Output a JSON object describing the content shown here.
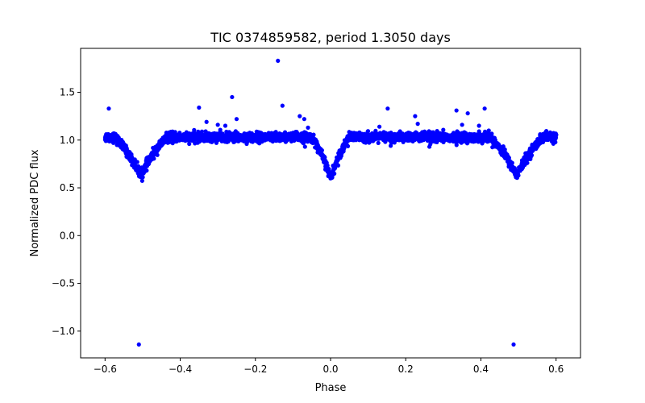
{
  "chart_data": {
    "type": "scatter",
    "title": "TIC 0374859582, period 1.3050 days",
    "xlabel": "Phase",
    "ylabel": "Normalized PDC flux",
    "xlim": [
      -0.665,
      0.665
    ],
    "ylim": [
      -1.28,
      1.96
    ],
    "xticks": [
      -0.6,
      -0.4,
      -0.2,
      0.0,
      0.2,
      0.4,
      0.6
    ],
    "xtick_labels": [
      "−0.6",
      "−0.4",
      "−0.2",
      "0.0",
      "0.2",
      "0.4",
      "0.6"
    ],
    "yticks": [
      -1.0,
      -0.5,
      0.0,
      0.5,
      1.0,
      1.5
    ],
    "ytick_labels": [
      "−1.0",
      "−0.5",
      "0.0",
      "0.5",
      "1.0",
      "1.5"
    ],
    "grid": false,
    "series": [
      {
        "color": "#0000ff",
        "model": {
          "phase_range": [
            -0.6,
            0.6
          ],
          "baseline": 1.03,
          "eclipses": [
            {
              "center": -0.505,
              "depth": 0.4,
              "half_width": 0.07
            },
            {
              "center": 0.0,
              "depth": 0.42,
              "half_width": 0.05
            },
            {
              "center": 0.495,
              "depth": 0.4,
              "half_width": 0.07
            }
          ],
          "scatter": 0.035
        },
        "outliers": [
          {
            "x": -0.59,
            "y": 1.33
          },
          {
            "x": -0.35,
            "y": 1.34
          },
          {
            "x": -0.33,
            "y": 1.19
          },
          {
            "x": -0.3,
            "y": 1.16
          },
          {
            "x": -0.28,
            "y": 1.15
          },
          {
            "x": -0.262,
            "y": 1.45
          },
          {
            "x": -0.25,
            "y": 1.22
          },
          {
            "x": -0.14,
            "y": 1.83
          },
          {
            "x": -0.128,
            "y": 1.36
          },
          {
            "x": -0.082,
            "y": 1.25
          },
          {
            "x": -0.07,
            "y": 1.22
          },
          {
            "x": -0.06,
            "y": 1.13
          },
          {
            "x": 0.13,
            "y": 1.14
          },
          {
            "x": 0.152,
            "y": 1.33
          },
          {
            "x": 0.225,
            "y": 1.25
          },
          {
            "x": 0.232,
            "y": 1.17
          },
          {
            "x": 0.335,
            "y": 1.31
          },
          {
            "x": 0.35,
            "y": 1.16
          },
          {
            "x": 0.365,
            "y": 1.28
          },
          {
            "x": 0.395,
            "y": 1.15
          },
          {
            "x": 0.41,
            "y": 1.33
          },
          {
            "x": -0.068,
            "y": 0.93
          },
          {
            "x": 0.16,
            "y": 0.94
          },
          {
            "x": 0.263,
            "y": 0.93
          },
          {
            "x": -0.51,
            "y": -1.14
          },
          {
            "x": 0.487,
            "y": -1.14
          }
        ]
      }
    ]
  }
}
